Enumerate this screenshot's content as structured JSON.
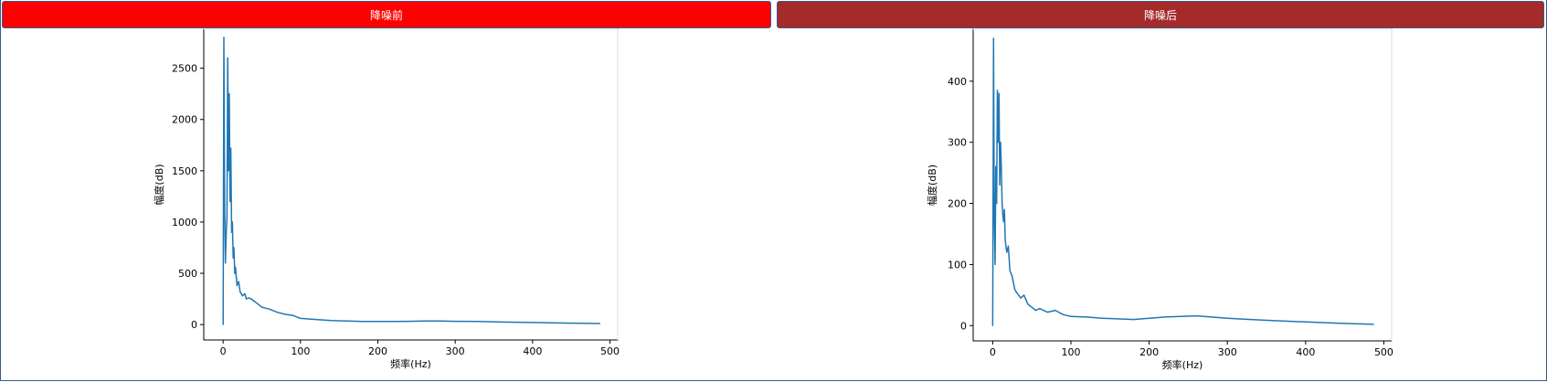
{
  "colors": {
    "header_left_bg": "#ff0000",
    "header_right_bg": "#a52a2a",
    "frame_border": "#3a5a8c",
    "series_color": "#1f77b4"
  },
  "header": {
    "left_label": "降噪前",
    "right_label": "降噪后"
  },
  "chart_data": [
    {
      "type": "line",
      "xlabel": "频率(Hz)",
      "ylabel": "幅度(dB)",
      "xlim": [
        -25,
        510
      ],
      "ylim": [
        -150,
        2880
      ],
      "xticks": [
        0,
        100,
        200,
        300,
        400,
        500
      ],
      "yticks": [
        0,
        500,
        1000,
        1500,
        2000,
        2500
      ],
      "grid": false,
      "series": [
        {
          "x": [
            0,
            1,
            2,
            3,
            4,
            5,
            6,
            7,
            8,
            9,
            10,
            11,
            12,
            13,
            14,
            15,
            16,
            18,
            20,
            22,
            25,
            28,
            30,
            33,
            36,
            40,
            45,
            50,
            55,
            60,
            70,
            80,
            90,
            100,
            120,
            140,
            160,
            180,
            200,
            220,
            240,
            260,
            280,
            300,
            330,
            360,
            400,
            440,
            487
          ],
          "y": [
            0,
            2800,
            1100,
            600,
            900,
            1050,
            2600,
            1500,
            2250,
            1200,
            1720,
            900,
            1000,
            650,
            750,
            500,
            560,
            380,
            420,
            320,
            280,
            300,
            250,
            260,
            250,
            230,
            200,
            170,
            160,
            150,
            120,
            100,
            90,
            60,
            50,
            40,
            35,
            30,
            30,
            30,
            32,
            35,
            35,
            32,
            30,
            25,
            20,
            15,
            10
          ]
        }
      ]
    },
    {
      "type": "line",
      "xlabel": "频率(Hz)",
      "ylabel": "幅度(dB)",
      "xlim": [
        -25,
        510
      ],
      "ylim": [
        -25,
        485
      ],
      "xticks": [
        0,
        100,
        200,
        300,
        400,
        500
      ],
      "yticks": [
        0,
        100,
        200,
        300,
        400
      ],
      "grid": false,
      "series": [
        {
          "x": [
            0,
            1,
            2,
            3,
            4,
            5,
            6,
            7,
            8,
            9,
            10,
            11,
            12,
            13,
            14,
            15,
            16,
            18,
            20,
            22,
            25,
            28,
            30,
            33,
            36,
            40,
            45,
            50,
            55,
            60,
            70,
            80,
            90,
            100,
            120,
            140,
            160,
            180,
            200,
            220,
            240,
            260,
            280,
            300,
            330,
            360,
            400,
            440,
            487
          ],
          "y": [
            0,
            470,
            180,
            100,
            260,
            200,
            385,
            300,
            380,
            230,
            300,
            260,
            200,
            180,
            170,
            190,
            140,
            120,
            130,
            90,
            80,
            60,
            55,
            50,
            45,
            50,
            35,
            30,
            25,
            28,
            22,
            25,
            18,
            15,
            14,
            12,
            11,
            10,
            12,
            14,
            15,
            16,
            14,
            12,
            10,
            8,
            6,
            4,
            2
          ]
        }
      ]
    }
  ]
}
